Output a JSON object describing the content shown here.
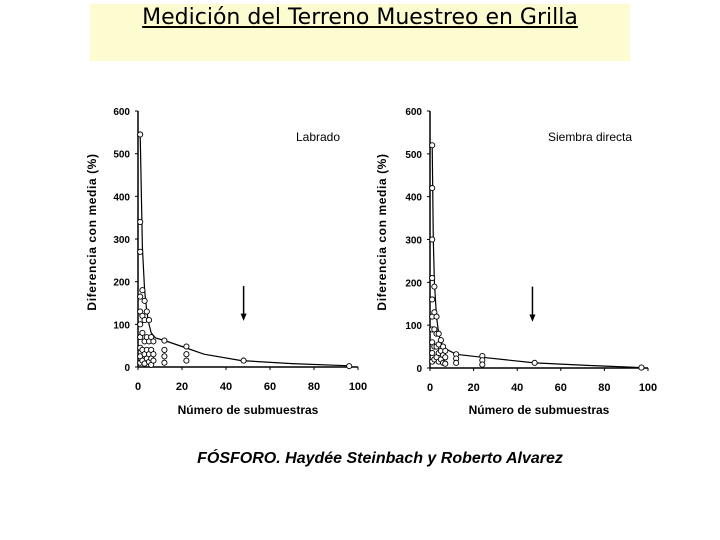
{
  "slide": {
    "title": "Medición del Terreno Muestreo en Grilla",
    "caption": "FÓSFORO. Haydée Steinbach y Roberto Alvarez",
    "title_bg": "#fdfbd0"
  },
  "chart_data": [
    {
      "type": "scatter",
      "title": "Labrado",
      "xlabel": "Número de submuestras",
      "ylabel": "Diferencia con media (%)",
      "xlim": [
        0,
        100
      ],
      "ylim": [
        0,
        600
      ],
      "xticks": [
        "0",
        "20",
        "40",
        "60",
        "80",
        "100"
      ],
      "yticks": [
        "0",
        "100",
        "200",
        "300",
        "400",
        "500",
        "600"
      ],
      "grid": false,
      "arrow_x": 48,
      "curve": [
        [
          1,
          545
        ],
        [
          2,
          280
        ],
        [
          3,
          180
        ],
        [
          4,
          130
        ],
        [
          5,
          100
        ],
        [
          6,
          80
        ],
        [
          8,
          68
        ],
        [
          12,
          62
        ],
        [
          20,
          48
        ],
        [
          30,
          30
        ],
        [
          47,
          15
        ],
        [
          70,
          8
        ],
        [
          95,
          3
        ]
      ],
      "points": [
        [
          1,
          545
        ],
        [
          1,
          340
        ],
        [
          1,
          270
        ],
        [
          1,
          165
        ],
        [
          1,
          130
        ],
        [
          1,
          100
        ],
        [
          1,
          70
        ],
        [
          1,
          45
        ],
        [
          1,
          25
        ],
        [
          1,
          10
        ],
        [
          2,
          180
        ],
        [
          2,
          120
        ],
        [
          2,
          80
        ],
        [
          2,
          40
        ],
        [
          2,
          15
        ],
        [
          3,
          155
        ],
        [
          3,
          110
        ],
        [
          3,
          60
        ],
        [
          3,
          30
        ],
        [
          3,
          8
        ],
        [
          4,
          130
        ],
        [
          4,
          70
        ],
        [
          4,
          40
        ],
        [
          4,
          20
        ],
        [
          5,
          110
        ],
        [
          5,
          60
        ],
        [
          5,
          30
        ],
        [
          5,
          12
        ],
        [
          6,
          70
        ],
        [
          6,
          40
        ],
        [
          6,
          20
        ],
        [
          6,
          5
        ],
        [
          7,
          60
        ],
        [
          7,
          30
        ],
        [
          7,
          15
        ],
        [
          12,
          62
        ],
        [
          12,
          40
        ],
        [
          12,
          25
        ],
        [
          12,
          10
        ],
        [
          22,
          48
        ],
        [
          22,
          30
        ],
        [
          22,
          15
        ],
        [
          48,
          15
        ],
        [
          96,
          2
        ]
      ]
    },
    {
      "type": "scatter",
      "title": "Siembra directa",
      "xlabel": "Número de submuestras",
      "ylabel": "Diferencia con media (%)",
      "xlim": [
        0,
        100
      ],
      "ylim": [
        0,
        600
      ],
      "xticks": [
        "0",
        "20",
        "40",
        "60",
        "80",
        "100"
      ],
      "yticks": [
        "0",
        "100",
        "200",
        "300",
        "400",
        "500",
        "600"
      ],
      "grid": false,
      "arrow_x": 47,
      "curve": [
        [
          1,
          520
        ],
        [
          1.5,
          300
        ],
        [
          2,
          200
        ],
        [
          3,
          120
        ],
        [
          4,
          80
        ],
        [
          5,
          60
        ],
        [
          7,
          45
        ],
        [
          12,
          32
        ],
        [
          24,
          25
        ],
        [
          48,
          12
        ],
        [
          72,
          6
        ],
        [
          97,
          1
        ]
      ],
      "points": [
        [
          1,
          520
        ],
        [
          1,
          420
        ],
        [
          1,
          300
        ],
        [
          1,
          210
        ],
        [
          1,
          160
        ],
        [
          1,
          120
        ],
        [
          1,
          90
        ],
        [
          1,
          60
        ],
        [
          1,
          35
        ],
        [
          1,
          15
        ],
        [
          2,
          190
        ],
        [
          2,
          130
        ],
        [
          2,
          90
        ],
        [
          2,
          50
        ],
        [
          2,
          20
        ],
        [
          3,
          120
        ],
        [
          3,
          80
        ],
        [
          3,
          50
        ],
        [
          3,
          25
        ],
        [
          4,
          80
        ],
        [
          4,
          55
        ],
        [
          4,
          35
        ],
        [
          4,
          15
        ],
        [
          5,
          65
        ],
        [
          5,
          40
        ],
        [
          5,
          20
        ],
        [
          6,
          50
        ],
        [
          6,
          30
        ],
        [
          6,
          12
        ],
        [
          7,
          40
        ],
        [
          7,
          25
        ],
        [
          7,
          10
        ],
        [
          12,
          32
        ],
        [
          12,
          22
        ],
        [
          12,
          12
        ],
        [
          24,
          28
        ],
        [
          24,
          18
        ],
        [
          24,
          8
        ],
        [
          48,
          12
        ],
        [
          97,
          1
        ]
      ]
    }
  ]
}
